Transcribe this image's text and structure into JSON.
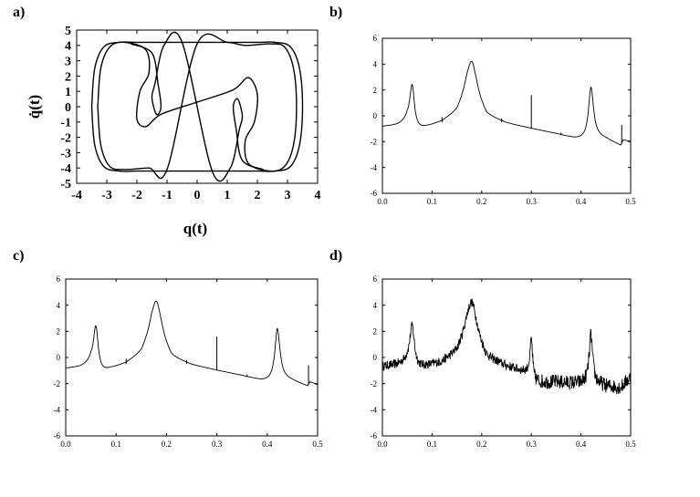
{
  "chart_data": [
    {
      "panel": "a)",
      "type": "line",
      "xlabel": "q(t)",
      "ylabel": "q̇(t)",
      "xlim": [
        -4,
        4
      ],
      "ylim": [
        -5,
        5
      ],
      "xticks": [
        "-4",
        "-3",
        "-2",
        "-1",
        "0",
        "1",
        "2",
        "3",
        "4"
      ],
      "yticks": [
        "5",
        "4",
        "3",
        "2",
        "1",
        "0",
        "-1",
        "-2",
        "-3",
        "-4",
        "-5"
      ],
      "grid": false,
      "series": [
        {
          "x": [
            -3.5,
            -3.4,
            -3.1,
            -2.6,
            -2.0,
            -1.0,
            0.0,
            1.0,
            2.0,
            2.6,
            3.1,
            3.4,
            3.5,
            3.4,
            3.1,
            2.6,
            2.0,
            1.0,
            0.0,
            -1.0,
            -2.0,
            -2.6,
            -3.1,
            -3.4,
            -3.5
          ],
          "y": [
            0,
            2.5,
            3.9,
            4.2,
            4.2,
            4.2,
            4.2,
            4.2,
            4.2,
            4.2,
            3.9,
            2.5,
            0,
            -2.5,
            -3.9,
            -4.2,
            -4.2,
            -4.2,
            -4.2,
            -4.2,
            -4.2,
            -4.2,
            -3.9,
            -2.5,
            0
          ]
        },
        {
          "x": [
            -3.3,
            -3.2,
            -2.9,
            -2.4,
            -1.7,
            -1.6,
            -1.9,
            -2.0,
            -1.7,
            -1.2,
            0.0,
            1.2,
            1.7,
            2.0,
            1.9,
            1.6,
            1.7,
            2.4,
            2.9,
            3.2,
            3.3,
            3.2,
            2.9,
            2.4,
            1.6,
            1.0,
            0.0,
            -1.0,
            -1.6,
            -2.4,
            -2.9,
            -3.2,
            -3.3
          ],
          "y": [
            0,
            2.5,
            3.9,
            4.2,
            3.7,
            2.2,
            1.0,
            -0.8,
            -1.3,
            -0.5,
            0.3,
            1.1,
            1.9,
            0.8,
            -1.0,
            -2.2,
            -3.7,
            -4.2,
            -3.9,
            -2.5,
            0,
            2.5,
            3.9,
            4.1,
            4.0,
            4.2,
            4.1,
            -4.1,
            -4.0,
            -4.1,
            -3.9,
            -2.5,
            0
          ]
        },
        {
          "x": [
            -2.2,
            -1.5,
            -1.3,
            -1.2,
            -1.35,
            -1.5,
            -1.4,
            -1.1,
            -0.5,
            0.5,
            1.1,
            1.4,
            1.5,
            1.35,
            1.2,
            1.3,
            1.5,
            2.2
          ],
          "y": [
            4.1,
            3.5,
            1.5,
            0.0,
            -0.5,
            0.6,
            1.5,
            4.0,
            4.2,
            -4.2,
            -4.0,
            -1.5,
            -0.6,
            0.5,
            0.0,
            -1.5,
            -3.5,
            -4.1
          ]
        }
      ]
    },
    {
      "panel": "b)",
      "type": "line",
      "xlim": [
        0,
        0.5
      ],
      "ylim": [
        -6,
        6
      ],
      "xticks": [
        "0.0",
        "0.1",
        "0.2",
        "0.3",
        "0.4",
        "0.5"
      ],
      "yticks": [
        "6",
        "4",
        "2",
        "0",
        "-2",
        "-4",
        "-6"
      ],
      "grid": false,
      "baseline": [
        [
          0.0,
          -0.85
        ],
        [
          0.03,
          -0.75
        ],
        [
          0.05,
          -0.5
        ],
        [
          0.065,
          -1.3
        ],
        [
          0.09,
          -0.9
        ],
        [
          0.12,
          -0.5
        ],
        [
          0.15,
          0.2
        ],
        [
          0.17,
          1.5
        ],
        [
          0.19,
          1.0
        ],
        [
          0.21,
          -0.1
        ],
        [
          0.25,
          -0.6
        ],
        [
          0.3,
          -1.0
        ],
        [
          0.35,
          -1.4
        ],
        [
          0.39,
          -1.8
        ],
        [
          0.415,
          -1.9
        ],
        [
          0.425,
          -1.6
        ],
        [
          0.45,
          -1.8
        ],
        [
          0.48,
          -2.3
        ],
        [
          0.485,
          -1.9
        ],
        [
          0.5,
          -2.0
        ]
      ],
      "peaks": [
        {
          "x": 0.06,
          "y": 2.4,
          "width": 0.006
        },
        {
          "x": 0.18,
          "y": 4.2,
          "width": 0.012
        },
        {
          "x": 0.42,
          "y": 2.2,
          "width": 0.006
        }
      ],
      "spikes": [
        [
          0.12,
          -0.1
        ],
        [
          0.24,
          -0.2
        ],
        [
          0.3,
          1.6
        ],
        [
          0.36,
          -1.3
        ],
        [
          0.482,
          -0.7
        ]
      ],
      "noise": 0
    },
    {
      "panel": "c)",
      "type": "line",
      "xlim": [
        0,
        0.5
      ],
      "ylim": [
        -6,
        6
      ],
      "xticks": [
        "0.0",
        "0.1",
        "0.2",
        "0.3",
        "0.4",
        "0.5"
      ],
      "yticks": [
        "6",
        "4",
        "2",
        "0",
        "-2",
        "-4",
        "-6"
      ],
      "grid": false,
      "baseline": [
        [
          0.0,
          -0.85
        ],
        [
          0.03,
          -0.75
        ],
        [
          0.05,
          -0.5
        ],
        [
          0.065,
          -1.4
        ],
        [
          0.09,
          -0.9
        ],
        [
          0.12,
          -0.5
        ],
        [
          0.15,
          0.2
        ],
        [
          0.17,
          1.5
        ],
        [
          0.19,
          1.0
        ],
        [
          0.21,
          -0.1
        ],
        [
          0.25,
          -0.6
        ],
        [
          0.3,
          -1.0
        ],
        [
          0.35,
          -1.4
        ],
        [
          0.39,
          -1.8
        ],
        [
          0.415,
          -1.9
        ],
        [
          0.425,
          -1.6
        ],
        [
          0.45,
          -1.8
        ],
        [
          0.48,
          -2.2
        ],
        [
          0.485,
          -1.9
        ],
        [
          0.5,
          -2.1
        ]
      ],
      "peaks": [
        {
          "x": 0.06,
          "y": 2.4,
          "width": 0.006
        },
        {
          "x": 0.18,
          "y": 4.3,
          "width": 0.012
        },
        {
          "x": 0.42,
          "y": 2.2,
          "width": 0.006
        }
      ],
      "spikes": [
        [
          0.12,
          -0.1
        ],
        [
          0.24,
          -0.2
        ],
        [
          0.3,
          1.6
        ],
        [
          0.36,
          -1.3
        ],
        [
          0.482,
          -0.6
        ]
      ],
      "noise": 0
    },
    {
      "panel": "d)",
      "type": "line",
      "xlim": [
        0,
        0.5
      ],
      "ylim": [
        -6,
        6
      ],
      "xticks": [
        "0.0",
        "0.1",
        "0.2",
        "0.3",
        "0.4",
        "0.5"
      ],
      "yticks": [
        "6",
        "4",
        "2",
        "0",
        "-2",
        "-4",
        "-6"
      ],
      "grid": false,
      "baseline": [
        [
          0.0,
          -0.7
        ],
        [
          0.03,
          -0.6
        ],
        [
          0.05,
          -0.4
        ],
        [
          0.065,
          -1.0
        ],
        [
          0.09,
          -0.7
        ],
        [
          0.12,
          -0.4
        ],
        [
          0.15,
          0.3
        ],
        [
          0.17,
          1.6
        ],
        [
          0.19,
          1.1
        ],
        [
          0.21,
          -0.1
        ],
        [
          0.25,
          -0.7
        ],
        [
          0.295,
          -1.2
        ],
        [
          0.305,
          -1.9
        ],
        [
          0.35,
          -1.9
        ],
        [
          0.4,
          -2.0
        ],
        [
          0.415,
          -1.8
        ],
        [
          0.425,
          -1.9
        ],
        [
          0.45,
          -2.2
        ],
        [
          0.48,
          -2.3
        ],
        [
          0.5,
          -1.5
        ]
      ],
      "peaks": [
        {
          "x": 0.06,
          "y": 2.4,
          "width": 0.006
        },
        {
          "x": 0.18,
          "y": 4.2,
          "width": 0.012
        },
        {
          "x": 0.3,
          "y": 1.4,
          "width": 0.003
        },
        {
          "x": 0.42,
          "y": 1.7,
          "width": 0.004
        }
      ],
      "spikes": [],
      "noise": 0.35
    }
  ]
}
